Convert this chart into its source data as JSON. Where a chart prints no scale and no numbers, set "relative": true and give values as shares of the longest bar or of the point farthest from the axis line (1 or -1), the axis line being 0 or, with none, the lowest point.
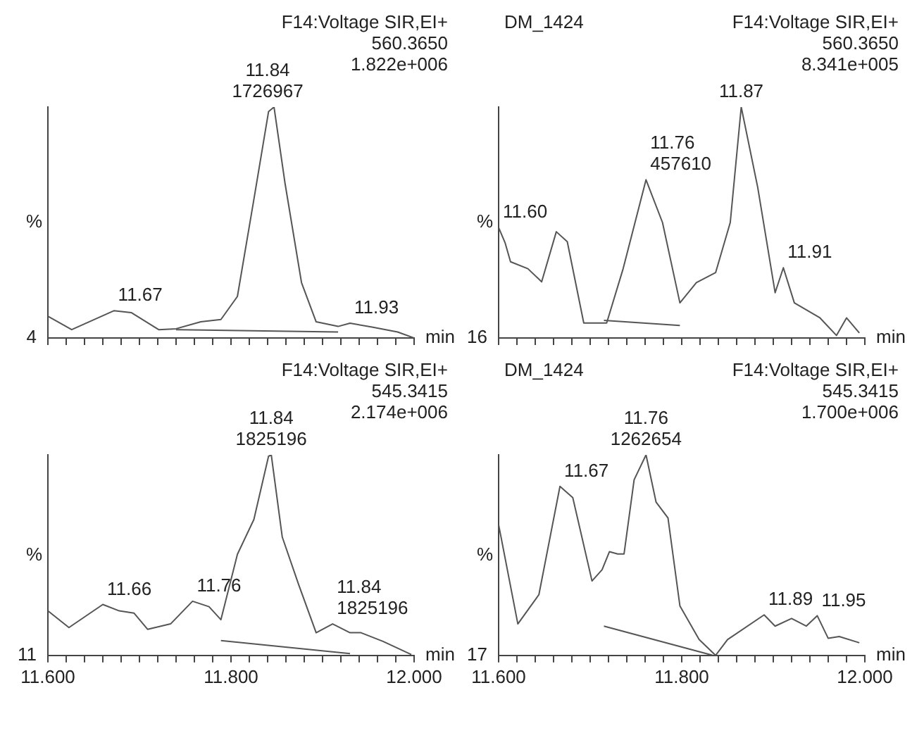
{
  "chart_data": [
    {
      "type": "line",
      "subtitle": "F14:Voltage SIR,EI+\n560.3650\n1.822e+006",
      "xlabel": "min",
      "ylabel": "%",
      "relative": true,
      "tick_labels": false,
      "xlim": [
        11.6,
        12.0
      ],
      "xticks": [
        11.6,
        11.62,
        11.64,
        11.66,
        11.68,
        11.7,
        11.72,
        11.74,
        11.76,
        11.78,
        11.8,
        11.82,
        11.84,
        11.86,
        11.88,
        11.9,
        11.92,
        11.94,
        11.96,
        11.98,
        12.0
      ],
      "annotations": [
        "4",
        {
          "text": "11.84\n1726967",
          "x": 11.84,
          "y": 1
        },
        {
          "text": "11.67",
          "x": 11.672,
          "y": 0.118
        },
        {
          "text": "11.93",
          "x": 11.93,
          "y": 0.064
        }
      ],
      "series": [
        {
          "color": "#555555",
          "x": [
            11.6,
            11.626,
            11.672,
            11.691,
            11.721,
            11.74,
            11.767,
            11.789,
            11.807,
            11.825,
            11.841,
            11.847,
            11.859,
            11.877,
            11.893,
            11.917,
            11.93,
            11.954,
            11.982,
            12.0
          ],
          "values": [
            0.094,
            0.036,
            0.118,
            0.11,
            0.036,
            0.04,
            0.07,
            0.08,
            0.18,
            0.6,
            0.98,
            1,
            0.67,
            0.24,
            0.07,
            0.05,
            0.064,
            0.047,
            0.026,
            0
          ]
        },
        {
          "color": "#555555",
          "x": [
            11.74,
            11.917
          ],
          "values": [
            0.036,
            0.026
          ]
        }
      ]
    },
    {
      "type": "line",
      "title": "DM_1424",
      "subtitle": "F14:Voltage SIR,EI+\n560.3650\n8.341e+005",
      "xlabel": "min",
      "ylabel": "%",
      "relative": true,
      "tick_labels": false,
      "xlim": [
        11.6,
        12.0
      ],
      "xticks": [
        11.6,
        11.62,
        11.64,
        11.66,
        11.68,
        11.7,
        11.72,
        11.74,
        11.76,
        11.78,
        11.8,
        11.82,
        11.84,
        11.86,
        11.88,
        11.9,
        11.92,
        11.94,
        11.96,
        11.98,
        12.0
      ],
      "annotations": [
        "16",
        {
          "text": "11.60",
          "x": 11.6,
          "y": 0.478
        },
        {
          "text": "11.76\n457610",
          "x": 11.761,
          "y": 0.685
        },
        {
          "text": "11.87",
          "x": 11.865,
          "y": 1
        },
        {
          "text": "11.91",
          "x": 11.911,
          "y": 0.304
        }
      ],
      "series": [
        {
          "color": "#555555",
          "x": [
            11.6,
            11.607,
            11.613,
            11.632,
            11.647,
            11.663,
            11.675,
            11.693,
            11.718,
            11.736,
            11.761,
            11.779,
            11.798,
            11.816,
            11.837,
            11.853,
            11.865,
            11.883,
            11.902,
            11.911,
            11.923,
            11.951,
            11.969,
            11.98,
            11.994
          ],
          "values": [
            0.478,
            0.413,
            0.33,
            0.3,
            0.243,
            0.46,
            0.417,
            0.065,
            0.065,
            0.3,
            0.685,
            0.5,
            0.152,
            0.24,
            0.283,
            0.5,
            1,
            0.652,
            0.196,
            0.304,
            0.152,
            0.087,
            0.011,
            0.087,
            0.022
          ]
        },
        {
          "color": "#555555",
          "x": [
            11.715,
            11.798
          ],
          "values": [
            0.076,
            0.054
          ]
        }
      ]
    },
    {
      "type": "line",
      "subtitle": "F14:Voltage SIR,EI+\n545.3415\n2.174e+006",
      "xlabel": "min",
      "ylabel": "%",
      "relative": true,
      "tick_labels": "x",
      "xlim": [
        11.6,
        12.0
      ],
      "xticks": [
        {
          "value": 11.6,
          "label": "11.600"
        },
        {
          "value": 11.62,
          "label": null
        },
        {
          "value": 11.64,
          "label": null
        },
        {
          "value": 11.66,
          "label": null
        },
        {
          "value": 11.68,
          "label": null
        },
        {
          "value": 11.7,
          "label": null
        },
        {
          "value": 11.72,
          "label": null
        },
        {
          "value": 11.74,
          "label": null
        },
        {
          "value": 11.76,
          "label": null
        },
        {
          "value": 11.78,
          "label": null
        },
        {
          "value": 11.8,
          "label": "11.800"
        },
        {
          "value": 11.82,
          "label": null
        },
        {
          "value": 11.84,
          "label": null
        },
        {
          "value": 11.86,
          "label": null
        },
        {
          "value": 11.88,
          "label": null
        },
        {
          "value": 11.9,
          "label": null
        },
        {
          "value": 11.92,
          "label": null
        },
        {
          "value": 11.94,
          "label": null
        },
        {
          "value": 11.96,
          "label": null
        },
        {
          "value": 11.98,
          "label": null
        },
        {
          "value": 12.0,
          "label": "12.000"
        }
      ],
      "annotations": [
        "11",
        {
          "text": "11.84\n1825196",
          "x": 11.844,
          "y": 1
        },
        {
          "text": "11.66",
          "x": 11.66,
          "y": 0.254
        },
        {
          "text": "11.76",
          "x": 11.758,
          "y": 0.27
        },
        {
          "text": "11.84\n1825196",
          "x": 11.911,
          "y": 0.157
        }
      ],
      "series": [
        {
          "color": "#555555",
          "x": [
            11.6,
            11.623,
            11.66,
            11.678,
            11.694,
            11.709,
            11.734,
            11.758,
            11.776,
            11.789,
            11.807,
            11.825,
            11.841,
            11.844,
            11.856,
            11.874,
            11.893,
            11.911,
            11.93,
            11.942,
            11.966,
            11.997
          ],
          "values": [
            0.222,
            0.139,
            0.254,
            0.222,
            0.211,
            0.13,
            0.157,
            0.27,
            0.243,
            0.178,
            0.504,
            0.678,
            0.993,
            1,
            0.59,
            0.352,
            0.113,
            0.157,
            0.113,
            0.113,
            0.07,
            0.004
          ]
        },
        {
          "color": "#555555",
          "x": [
            11.789,
            11.93
          ],
          "values": [
            0.074,
            0.009
          ]
        }
      ]
    },
    {
      "type": "line",
      "title": "DM_1424",
      "subtitle": "F14:Voltage SIR,EI+\n545.3415\n1.700e+006",
      "xlabel": "min",
      "ylabel": "%",
      "relative": true,
      "tick_labels": "x",
      "xlim": [
        11.6,
        12.0
      ],
      "xticks": [
        {
          "value": 11.6,
          "label": "11.600"
        },
        {
          "value": 11.62,
          "label": null
        },
        {
          "value": 11.64,
          "label": null
        },
        {
          "value": 11.66,
          "label": null
        },
        {
          "value": 11.68,
          "label": null
        },
        {
          "value": 11.7,
          "label": null
        },
        {
          "value": 11.72,
          "label": null
        },
        {
          "value": 11.74,
          "label": null
        },
        {
          "value": 11.76,
          "label": null
        },
        {
          "value": 11.78,
          "label": null
        },
        {
          "value": 11.8,
          "label": "11.800"
        },
        {
          "value": 11.82,
          "label": null
        },
        {
          "value": 11.84,
          "label": null
        },
        {
          "value": 11.86,
          "label": null
        },
        {
          "value": 11.88,
          "label": null
        },
        {
          "value": 11.9,
          "label": null
        },
        {
          "value": 11.92,
          "label": null
        },
        {
          "value": 11.94,
          "label": null
        },
        {
          "value": 11.96,
          "label": null
        },
        {
          "value": 11.98,
          "label": null
        },
        {
          "value": 12.0,
          "label": "12.000"
        }
      ],
      "annotations": [
        "17",
        {
          "text": "11.67",
          "x": 11.667,
          "y": 0.843
        },
        {
          "text": "11.76\n1262654",
          "x": 11.761,
          "y": 1
        },
        {
          "text": "11.89",
          "x": 11.89,
          "y": 0.202
        },
        {
          "text": "11.95",
          "x": 11.948,
          "y": 0.198
        }
      ],
      "series": [
        {
          "color": "#555555",
          "x": [
            11.6,
            11.621,
            11.644,
            11.667,
            11.681,
            11.702,
            11.713,
            11.721,
            11.73,
            11.737,
            11.748,
            11.761,
            11.772,
            11.785,
            11.798,
            11.819,
            11.837,
            11.85,
            11.89,
            11.902,
            11.92,
            11.936,
            11.948,
            11.96,
            11.972,
            11.994
          ],
          "values": [
            0.652,
            0.157,
            0.303,
            0.843,
            0.787,
            0.371,
            0.427,
            0.517,
            0.506,
            0.506,
            0.876,
            1,
            0.764,
            0.685,
            0.247,
            0.079,
            0,
            0.079,
            0.202,
            0.146,
            0.184,
            0.146,
            0.198,
            0.085,
            0.094,
            0.063
          ]
        },
        {
          "color": "#555555",
          "x": [
            11.715,
            11.834
          ],
          "values": [
            0.146,
            0
          ]
        }
      ]
    }
  ]
}
